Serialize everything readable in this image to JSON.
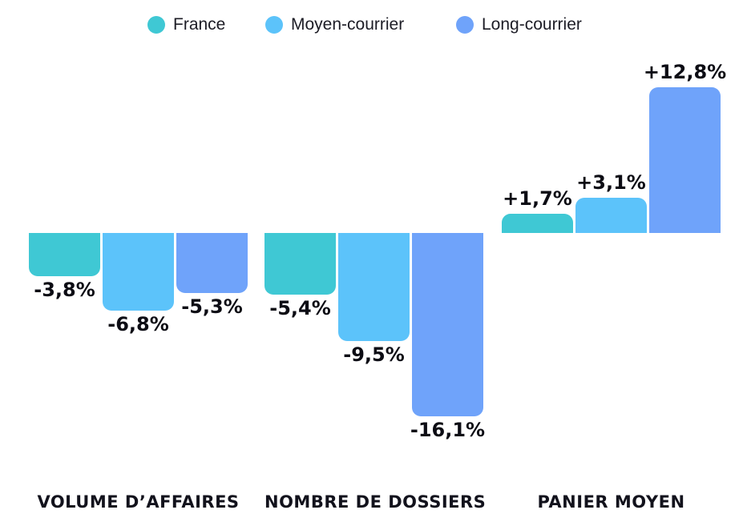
{
  "legend": {
    "items": [
      {
        "label": "France",
        "color": "#3FC8D4"
      },
      {
        "label": "Moyen-courrier",
        "color": "#5CC3FA"
      },
      {
        "label": "Long-courrier",
        "color": "#6FA3FA"
      }
    ]
  },
  "chart_data": {
    "type": "bar",
    "title": "",
    "categories": [
      "VOLUME D’AFFAIRES",
      "NOMBRE DE DOSSIERS",
      "PANIER MOYEN"
    ],
    "series": [
      {
        "name": "France",
        "color": "#3FC8D4",
        "values": [
          -3.8,
          -5.4,
          1.7
        ],
        "value_labels": [
          "-3,8%",
          "-5,4%",
          "+1,7%"
        ]
      },
      {
        "name": "Moyen-courrier",
        "color": "#5CC3FA",
        "values": [
          -6.8,
          -9.5,
          3.1
        ],
        "value_labels": [
          "-6,8%",
          "-9,5%",
          "+3,1%"
        ]
      },
      {
        "name": "Long-courrier",
        "color": "#6FA3FA",
        "values": [
          -5.3,
          -16.1,
          12.8
        ],
        "value_labels": [
          "-5,3%",
          "-16,1%",
          "+12,8%"
        ]
      }
    ],
    "unit": "%",
    "ylim": [
      -18,
      14
    ],
    "grid": false,
    "axis_lines_visible": false,
    "legend_position": "top",
    "value_label_position": "outside-end"
  }
}
